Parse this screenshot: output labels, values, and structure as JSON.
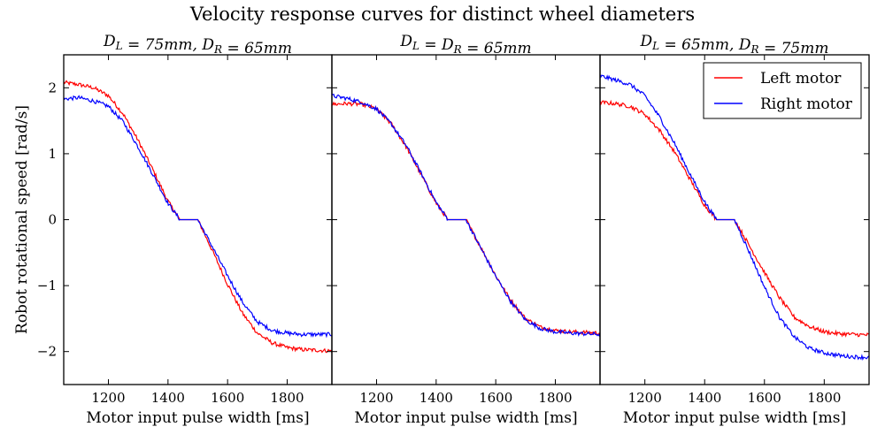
{
  "figure_title": "Velocity response curves for distinct wheel diameters",
  "colors": {
    "left": "#ff0000",
    "right": "#0000ff",
    "axes": "#000000",
    "background": "#ffffff"
  },
  "chart_data": [
    {
      "type": "line",
      "title": "D_L = 75mm, D_R = 65mm",
      "xlabel": "Motor input pulse width [ms]",
      "ylabel": "Robot rotational speed [rad/s]",
      "xlim": [
        1050,
        1950
      ],
      "ylim": [
        -2.5,
        2.5
      ],
      "xticks": [
        1200,
        1400,
        1600,
        1800
      ],
      "yticks": [
        -2,
        -1,
        0,
        1,
        2
      ],
      "ytick_labels": [
        "−2",
        "−1",
        "0",
        "1",
        "2"
      ],
      "grid": false,
      "series": [
        {
          "name": "Left motor",
          "color": "#ff0000",
          "x": [
            1050,
            1100,
            1150,
            1200,
            1250,
            1300,
            1350,
            1400,
            1440,
            1500,
            1550,
            1600,
            1650,
            1700,
            1750,
            1800,
            1850,
            1900,
            1950
          ],
          "y": [
            2.08,
            2.05,
            2.0,
            1.88,
            1.6,
            1.2,
            0.75,
            0.28,
            0.0,
            0.0,
            -0.48,
            -0.98,
            -1.42,
            -1.72,
            -1.87,
            -1.94,
            -1.97,
            -1.98,
            -1.99
          ]
        },
        {
          "name": "Right motor",
          "color": "#0000ff",
          "x": [
            1050,
            1100,
            1150,
            1200,
            1250,
            1300,
            1350,
            1400,
            1440,
            1500,
            1550,
            1600,
            1650,
            1700,
            1750,
            1800,
            1850,
            1900,
            1950
          ],
          "y": [
            1.83,
            1.85,
            1.8,
            1.72,
            1.48,
            1.1,
            0.68,
            0.25,
            0.0,
            0.0,
            -0.42,
            -0.85,
            -1.25,
            -1.55,
            -1.68,
            -1.72,
            -1.74,
            -1.74,
            -1.74
          ]
        }
      ]
    },
    {
      "type": "line",
      "title": "D_L = D_R = 65mm",
      "xlabel": "Motor input pulse width [ms]",
      "ylabel": "",
      "xlim": [
        1050,
        1950
      ],
      "ylim": [
        -2.5,
        2.5
      ],
      "xticks": [
        1200,
        1400,
        1600,
        1800
      ],
      "yticks": [
        -2,
        -1,
        0,
        1,
        2
      ],
      "ytick_labels": [],
      "grid": false,
      "series": [
        {
          "name": "Left motor",
          "color": "#ff0000",
          "x": [
            1050,
            1100,
            1150,
            1200,
            1250,
            1300,
            1350,
            1400,
            1440,
            1500,
            1550,
            1600,
            1650,
            1700,
            1750,
            1800,
            1850,
            1900,
            1950
          ],
          "y": [
            1.75,
            1.76,
            1.75,
            1.68,
            1.45,
            1.1,
            0.68,
            0.25,
            0.0,
            0.0,
            -0.42,
            -0.85,
            -1.22,
            -1.5,
            -1.63,
            -1.68,
            -1.7,
            -1.71,
            -1.72
          ]
        },
        {
          "name": "Right motor",
          "color": "#0000ff",
          "x": [
            1050,
            1100,
            1150,
            1200,
            1250,
            1300,
            1350,
            1400,
            1440,
            1500,
            1550,
            1600,
            1650,
            1700,
            1750,
            1800,
            1850,
            1900,
            1950
          ],
          "y": [
            1.88,
            1.84,
            1.78,
            1.68,
            1.45,
            1.12,
            0.7,
            0.26,
            0.0,
            0.0,
            -0.43,
            -0.86,
            -1.24,
            -1.52,
            -1.65,
            -1.7,
            -1.72,
            -1.73,
            -1.74
          ]
        }
      ]
    },
    {
      "type": "line",
      "title": "D_L = 65mm, D_R = 75mm",
      "xlabel": "Motor input pulse width [ms]",
      "ylabel": "",
      "xlim": [
        1050,
        1950
      ],
      "ylim": [
        -2.5,
        2.5
      ],
      "xticks": [
        1200,
        1400,
        1600,
        1800
      ],
      "yticks": [
        -2,
        -1,
        0,
        1,
        2
      ],
      "ytick_labels": [],
      "grid": false,
      "legend": {
        "position": "top-right",
        "entries": [
          "Left motor",
          "Right motor"
        ]
      },
      "series": [
        {
          "name": "Left motor",
          "color": "#ff0000",
          "x": [
            1050,
            1100,
            1150,
            1200,
            1250,
            1300,
            1350,
            1400,
            1440,
            1500,
            1550,
            1600,
            1650,
            1700,
            1750,
            1800,
            1850,
            1900,
            1950
          ],
          "y": [
            1.78,
            1.76,
            1.72,
            1.6,
            1.35,
            1.02,
            0.62,
            0.22,
            0.0,
            0.0,
            -0.4,
            -0.8,
            -1.18,
            -1.48,
            -1.62,
            -1.7,
            -1.73,
            -1.74,
            -1.75
          ]
        },
        {
          "name": "Right motor",
          "color": "#0000ff",
          "x": [
            1050,
            1100,
            1150,
            1200,
            1250,
            1300,
            1350,
            1400,
            1440,
            1500,
            1550,
            1600,
            1650,
            1700,
            1750,
            1800,
            1850,
            1900,
            1950
          ],
          "y": [
            2.18,
            2.12,
            2.05,
            1.88,
            1.55,
            1.15,
            0.7,
            0.27,
            0.0,
            0.0,
            -0.5,
            -1.02,
            -1.48,
            -1.78,
            -1.95,
            -2.02,
            -2.06,
            -2.08,
            -2.09
          ]
        }
      ]
    }
  ]
}
